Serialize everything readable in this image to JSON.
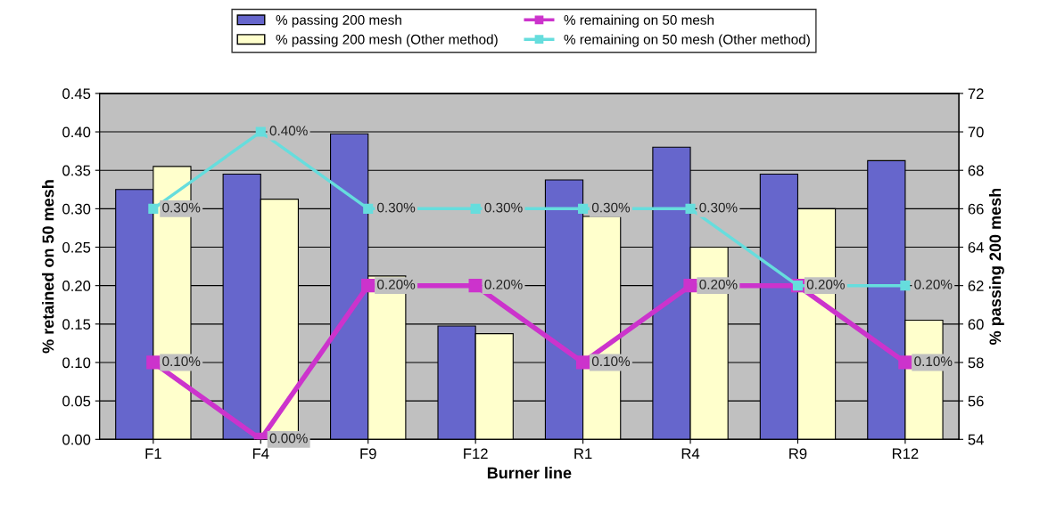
{
  "chart_data": {
    "type": "bar",
    "categories": [
      "F1",
      "F4",
      "F9",
      "F12",
      "R1",
      "R4",
      "R9",
      "R12"
    ],
    "xlabel": "Burner line",
    "ylabel": "% retained on 50 mesh",
    "y2label": "% passing 200 mesh",
    "ylim": [
      0,
      0.45
    ],
    "yticks": [
      {
        "value": 0,
        "label": "0.00"
      },
      {
        "value": 0.05,
        "label": "0.05"
      },
      {
        "value": 0.1,
        "label": "0.10"
      },
      {
        "value": 0.15,
        "label": "0.15"
      },
      {
        "value": 0.2,
        "label": "0.20"
      },
      {
        "value": 0.25,
        "label": "0.25"
      },
      {
        "value": 0.3,
        "label": "0.30"
      },
      {
        "value": 0.35,
        "label": "0.35"
      },
      {
        "value": 0.4,
        "label": "0.40"
      },
      {
        "value": 0.45,
        "label": "0.45"
      }
    ],
    "y2lim": [
      54,
      72
    ],
    "y2ticks": [
      54,
      56,
      58,
      60,
      62,
      64,
      66,
      68,
      70,
      72
    ],
    "grid": "y",
    "legend": "top",
    "marker": "square",
    "series": [
      {
        "name": "% passing 200 mesh",
        "axis": "y2",
        "color": "#6666cc",
        "values": [
          67.0,
          67.8,
          69.9,
          59.9,
          67.5,
          69.2,
          67.8,
          68.5
        ]
      },
      {
        "name": "% passing 200 mesh (Other method)",
        "axis": "y2",
        "color": "#ffffcc",
        "values": [
          68.2,
          66.5,
          62.5,
          59.5,
          65.6,
          64.0,
          66.0,
          60.2
        ]
      },
      {
        "name": "% remaining on 50 mesh",
        "type": "line",
        "axis": "y",
        "color": "#cc33cc",
        "values": [
          0.1,
          0,
          0.2,
          0.2,
          0.1,
          0.2,
          0.2,
          0.1
        ],
        "value_labels": [
          "0.10%",
          "0.00%",
          "0.20%",
          "0.20%",
          "0.10%",
          "0.20%",
          null,
          "0.10%"
        ]
      },
      {
        "name": "% remaining on 50 mesh (Other method)",
        "type": "line",
        "axis": "y",
        "color": "#66dddd",
        "values": [
          0.3,
          0.4,
          0.3,
          0.3,
          0.3,
          0.3,
          0.2,
          0.2
        ],
        "value_labels": [
          "0.30%",
          "0.40%",
          "0.30%",
          "0.30%",
          "0.30%",
          "0.30%",
          "0.20%",
          "0.20%"
        ]
      }
    ]
  }
}
